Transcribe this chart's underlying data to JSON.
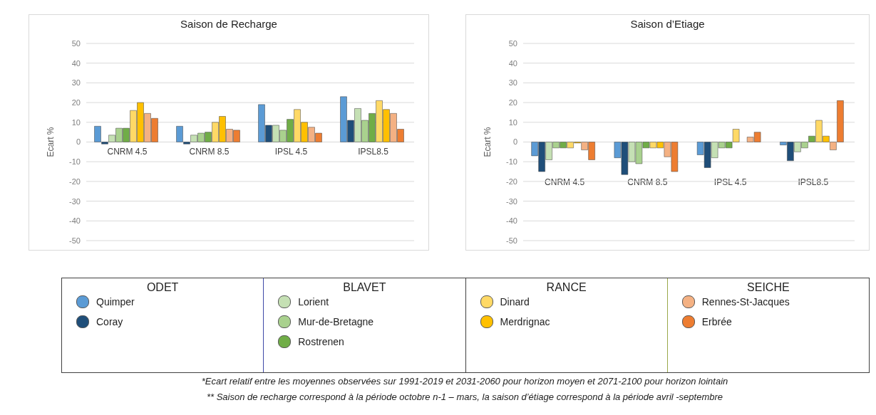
{
  "chart_data": [
    {
      "type": "bar",
      "title": "Saison de Recharge",
      "ylabel": "Ecart %",
      "categories": [
        "CNRM 4.5",
        "CNRM 8.5",
        "IPSL 4.5",
        "IPSL8.5"
      ],
      "ylim": [
        -50,
        50
      ],
      "yticks": [
        -50,
        -40,
        -30,
        -20,
        -10,
        0,
        10,
        20,
        30,
        40,
        50
      ],
      "grid": "y",
      "series": [
        {
          "color": "#5b9bd5",
          "values": [
            8,
            8,
            19,
            23
          ]
        },
        {
          "color": "#1f4e79",
          "values": [
            -1,
            -1,
            8.5,
            11
          ]
        },
        {
          "color": "#c5e0b4",
          "values": [
            3.5,
            3.5,
            8.5,
            17
          ]
        },
        {
          "color": "#a9d18e",
          "values": [
            7,
            4.5,
            6,
            11
          ]
        },
        {
          "color": "#70ad47",
          "values": [
            7,
            5,
            11.5,
            14.5
          ]
        },
        {
          "color": "#ffd966",
          "values": [
            16,
            10,
            16.5,
            21
          ]
        },
        {
          "color": "#ffc000",
          "values": [
            20,
            13,
            10,
            16.5
          ]
        },
        {
          "color": "#f4b183",
          "values": [
            14.5,
            6.5,
            7.5,
            14.5
          ]
        },
        {
          "color": "#ed7d31",
          "values": [
            12,
            6,
            4.5,
            6.5
          ]
        }
      ]
    },
    {
      "type": "bar",
      "title": "Saison d’Etiage",
      "ylabel": "Ecart %",
      "categories": [
        "CNRM 4.5",
        "CNRM 8.5",
        "IPSL 4.5",
        "IPSL8.5"
      ],
      "ylim": [
        -50,
        50
      ],
      "yticks": [
        -50,
        -40,
        -30,
        -20,
        -10,
        0,
        10,
        20,
        30,
        40,
        50
      ],
      "grid": "y",
      "legend": "bottom",
      "annotations": [
        "ODET",
        "BLAVET",
        "RANCE",
        "SEICHE",
        "*Ecart relatif  entre les moyennes observées sur 1991-2019 et 2031-2060 pour horizon moyen et 2071-2100 pour horizon lointain",
        "**  Saison de recharge correspond à la période octobre n-1 – mars, la saison d’étiage correspond à la période avril -septembre"
      ],
      "series": [
        {
          "name": "Quimper",
          "color": "#5b9bd5",
          "values": [
            -7,
            -8,
            -6.5,
            -1.5
          ]
        },
        {
          "name": "Coray",
          "color": "#1f4e79",
          "values": [
            -15,
            -16.5,
            -13,
            -9.5
          ]
        },
        {
          "name": "Lorient",
          "color": "#c5e0b4",
          "values": [
            -9,
            -10,
            -8,
            -5
          ]
        },
        {
          "name": "Mur-de-Bretagne",
          "color": "#a9d18e",
          "values": [
            -3,
            -11,
            -3,
            -3
          ]
        },
        {
          "name": "Rostrenen",
          "color": "#70ad47",
          "values": [
            -3,
            -3,
            -3,
            3
          ]
        },
        {
          "name": "Dinard",
          "color": "#ffd966",
          "values": [
            -3,
            -3,
            6.5,
            11
          ]
        },
        {
          "name": "Merdrignac",
          "color": "#ffc000",
          "values": [
            -0.5,
            -3,
            0,
            3
          ]
        },
        {
          "name": "Rennes-St-Jacques",
          "color": "#f4b183",
          "values": [
            -4,
            -7.5,
            2.5,
            -4
          ]
        },
        {
          "name": "Erbrée",
          "color": "#ed7d31",
          "values": [
            -9,
            -15,
            5,
            21
          ]
        }
      ]
    }
  ]
}
